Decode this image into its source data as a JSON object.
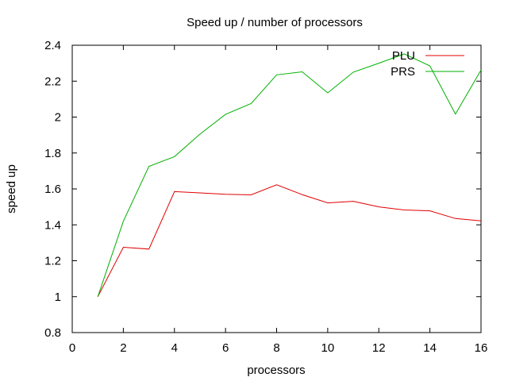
{
  "chart_data": {
    "type": "line",
    "title": "Speed up / number of processors",
    "xlabel": "processors",
    "ylabel": "speed up",
    "xlim": [
      0,
      16
    ],
    "ylim": [
      0.8,
      2.4
    ],
    "xticks": [
      0,
      2,
      4,
      6,
      8,
      10,
      12,
      14,
      16
    ],
    "xtick_labels": [
      "0",
      "2",
      "4",
      "6",
      "8",
      "10",
      "12",
      "14",
      "16"
    ],
    "yticks": [
      0.8,
      1.0,
      1.2,
      1.4,
      1.6,
      1.8,
      2.0,
      2.2,
      2.4
    ],
    "ytick_labels": [
      "0.8",
      "1",
      "1.2",
      "1.4",
      "1.6",
      "1.8",
      "2",
      "2.2",
      "2.4"
    ],
    "grid": false,
    "legend_position": "top-right",
    "x": [
      1,
      2,
      3,
      4,
      5,
      6,
      7,
      8,
      9,
      10,
      11,
      12,
      13,
      14,
      15,
      16
    ],
    "series": [
      {
        "name": "PLU",
        "color": "#e00000",
        "values": [
          1.0,
          1.275,
          1.265,
          1.585,
          1.578,
          1.57,
          1.567,
          1.623,
          1.568,
          1.522,
          1.531,
          1.5,
          1.483,
          1.478,
          1.435,
          1.422
        ]
      },
      {
        "name": "PRS",
        "color": "#00b000",
        "values": [
          1.0,
          1.42,
          1.725,
          1.78,
          1.905,
          2.015,
          2.075,
          2.235,
          2.252,
          2.135,
          2.25,
          2.3,
          2.352,
          2.285,
          2.017,
          2.262
        ]
      }
    ]
  }
}
